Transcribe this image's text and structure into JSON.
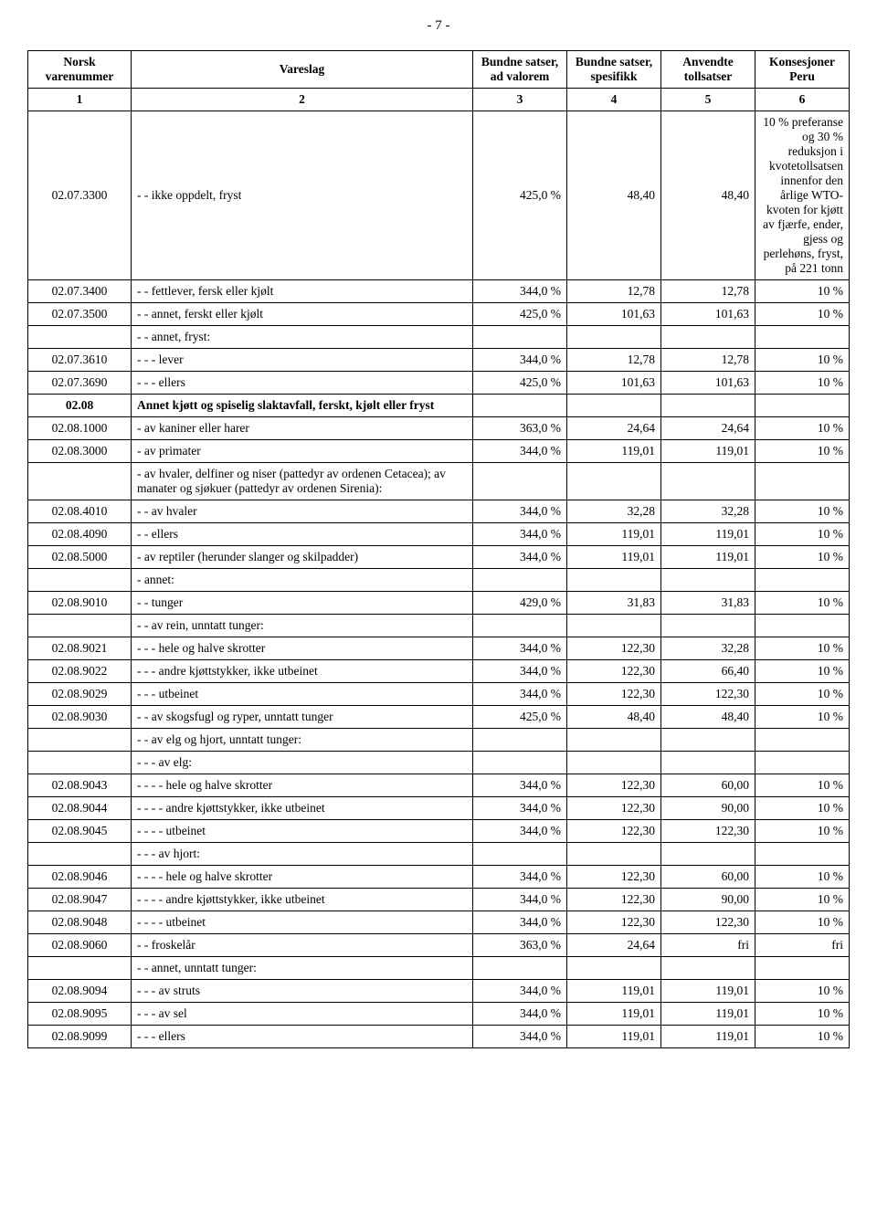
{
  "pageNumber": "- 7 -",
  "headers": {
    "col1": "Norsk varenummer",
    "col2": "Vareslag",
    "col3": "Bundne satser, ad valorem",
    "col4": "Bundne satser, spesifikk",
    "col5": "Anvendte tollsatser",
    "col6": "Konsesjoner Peru"
  },
  "numrow": [
    "1",
    "2",
    "3",
    "4",
    "5",
    "6"
  ],
  "rows": [
    {
      "c1": "02.07.3300",
      "c2": "- - ikke oppdelt, fryst",
      "c3": "425,0 %",
      "c4": "48,40",
      "c5": "48,40",
      "c6": "10 % preferanse og 30 % reduksjon i kvotetollsatsen innenfor den årlige WTO-kvoten for kjøtt av fjærfe, ender, gjess og perlehøns, fryst, på 221 tonn"
    },
    {
      "c1": "02.07.3400",
      "c2": "- - fettlever, fersk eller kjølt",
      "c3": "344,0 %",
      "c4": "12,78",
      "c5": "12,78",
      "c6": "10 %"
    },
    {
      "c1": "02.07.3500",
      "c2": "- - annet, ferskt eller kjølt",
      "c3": "425,0 %",
      "c4": "101,63",
      "c5": "101,63",
      "c6": "10 %"
    },
    {
      "c1": "",
      "c2": "- - annet, fryst:",
      "c3": "",
      "c4": "",
      "c5": "",
      "c6": ""
    },
    {
      "c1": "02.07.3610",
      "c2": "- - - lever",
      "c3": "344,0 %",
      "c4": "12,78",
      "c5": "12,78",
      "c6": "10 %"
    },
    {
      "c1": "02.07.3690",
      "c2": "- - - ellers",
      "c3": "425,0 %",
      "c4": "101,63",
      "c5": "101,63",
      "c6": "10 %"
    },
    {
      "section": true,
      "c1": "02.08",
      "c2": "Annet kjøtt og spiselig slaktavfall, ferskt, kjølt eller fryst",
      "c3": "",
      "c4": "",
      "c5": "",
      "c6": ""
    },
    {
      "c1": "02.08.1000",
      "c2": "- av kaniner eller harer",
      "c3": "363,0 %",
      "c4": "24,64",
      "c5": "24,64",
      "c6": "10 %"
    },
    {
      "c1": "02.08.3000",
      "c2": "- av primater",
      "c3": "344,0 %",
      "c4": "119,01",
      "c5": "119,01",
      "c6": "10 %"
    },
    {
      "c1": "",
      "c2": " - av hvaler, delfiner og niser (pattedyr av ordenen Cetacea); av manater og sjøkuer (pattedyr av ordenen Sirenia):",
      "c3": "",
      "c4": "",
      "c5": "",
      "c6": ""
    },
    {
      "c1": "02.08.4010",
      "c2": "- - av hvaler",
      "c3": "344,0 %",
      "c4": "32,28",
      "c5": "32,28",
      "c6": "10 %"
    },
    {
      "c1": "02.08.4090",
      "c2": "- - ellers",
      "c3": "344,0 %",
      "c4": "119,01",
      "c5": "119,01",
      "c6": "10 %"
    },
    {
      "c1": "02.08.5000",
      "c2": "- av reptiler (herunder slanger og skilpadder)",
      "c3": "344,0 %",
      "c4": "119,01",
      "c5": "119,01",
      "c6": "10 %"
    },
    {
      "c1": "",
      "c2": "- annet:",
      "c3": "",
      "c4": "",
      "c5": "",
      "c6": ""
    },
    {
      "c1": "02.08.9010",
      "c2": "- - tunger",
      "c3": "429,0 %",
      "c4": "31,83",
      "c5": "31,83",
      "c6": "10 %"
    },
    {
      "c1": "",
      "c2": "- - av rein, unntatt tunger:",
      "c3": "",
      "c4": "",
      "c5": "",
      "c6": ""
    },
    {
      "c1": "02.08.9021",
      "c2": "- - - hele og halve skrotter",
      "c3": "344,0 %",
      "c4": "122,30",
      "c5": "32,28",
      "c6": "10 %"
    },
    {
      "c1": "02.08.9022",
      "c2": "- - - andre kjøttstykker, ikke utbeinet",
      "c3": "344,0 %",
      "c4": "122,30",
      "c5": "66,40",
      "c6": "10 %"
    },
    {
      "c1": "02.08.9029",
      "c2": "- - - utbeinet",
      "c3": "344,0 %",
      "c4": "122,30",
      "c5": "122,30",
      "c6": "10 %"
    },
    {
      "c1": "02.08.9030",
      "c2": "- - av skogsfugl og ryper, unntatt tunger",
      "c3": "425,0 %",
      "c4": "48,40",
      "c5": "48,40",
      "c6": "10 %"
    },
    {
      "c1": "",
      "c2": "- - av elg og hjort, unntatt tunger:",
      "c3": "",
      "c4": "",
      "c5": "",
      "c6": ""
    },
    {
      "c1": "",
      "c2": "- - - av elg:",
      "c3": "",
      "c4": "",
      "c5": "",
      "c6": ""
    },
    {
      "c1": "02.08.9043",
      "c2": "- - - - hele og halve skrotter",
      "c3": "344,0 %",
      "c4": "122,30",
      "c5": "60,00",
      "c6": "10 %"
    },
    {
      "c1": "02.08.9044",
      "c2": "- - - - andre kjøttstykker, ikke utbeinet",
      "c3": "344,0 %",
      "c4": "122,30",
      "c5": "90,00",
      "c6": "10 %"
    },
    {
      "c1": "02.08.9045",
      "c2": "- - - - utbeinet",
      "c3": "344,0 %",
      "c4": "122,30",
      "c5": "122,30",
      "c6": "10 %"
    },
    {
      "c1": "",
      "c2": "- - - av hjort:",
      "c3": "",
      "c4": "",
      "c5": "",
      "c6": ""
    },
    {
      "c1": "02.08.9046",
      "c2": "- - - - hele og halve skrotter",
      "c3": "344,0 %",
      "c4": "122,30",
      "c5": "60,00",
      "c6": "10 %"
    },
    {
      "c1": "02.08.9047",
      "c2": "- - - - andre kjøttstykker, ikke utbeinet",
      "c3": "344,0 %",
      "c4": "122,30",
      "c5": "90,00",
      "c6": "10 %"
    },
    {
      "c1": "02.08.9048",
      "c2": "- - - - utbeinet",
      "c3": "344,0 %",
      "c4": "122,30",
      "c5": "122,30",
      "c6": "10 %"
    },
    {
      "c1": "02.08.9060",
      "c2": "- - froskelår",
      "c3": "363,0 %",
      "c4": "24,64",
      "c5": "fri",
      "c6": "fri"
    },
    {
      "c1": "",
      "c2": "- - annet, unntatt tunger:",
      "c3": "",
      "c4": "",
      "c5": "",
      "c6": ""
    },
    {
      "c1": "02.08.9094",
      "c2": "- - - av struts",
      "c3": "344,0 %",
      "c4": "119,01",
      "c5": "119,01",
      "c6": "10 %"
    },
    {
      "c1": "02.08.9095",
      "c2": "- - - av sel",
      "c3": "344,0 %",
      "c4": "119,01",
      "c5": "119,01",
      "c6": "10 %"
    },
    {
      "c1": "02.08.9099",
      "c2": "- - - ellers",
      "c3": "344,0 %",
      "c4": "119,01",
      "c5": "119,01",
      "c6": "10 %"
    }
  ]
}
